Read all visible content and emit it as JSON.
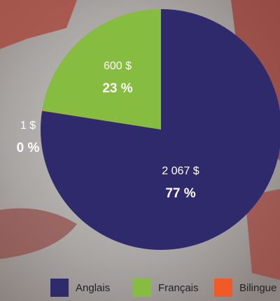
{
  "chart_data": {
    "type": "pie",
    "categories": [
      "Anglais",
      "Français",
      "Bilingue"
    ],
    "values": [
      2067,
      600,
      1
    ],
    "value_labels": [
      "2 067 $",
      "600 $",
      "1 $"
    ],
    "percentages": [
      77,
      23,
      0
    ],
    "percent_labels": [
      "77 %",
      "23 %",
      "0 %"
    ],
    "colors": [
      "#2e2a6b",
      "#86bc3f",
      "#f05a28"
    ],
    "legend": "bottom-right"
  }
}
